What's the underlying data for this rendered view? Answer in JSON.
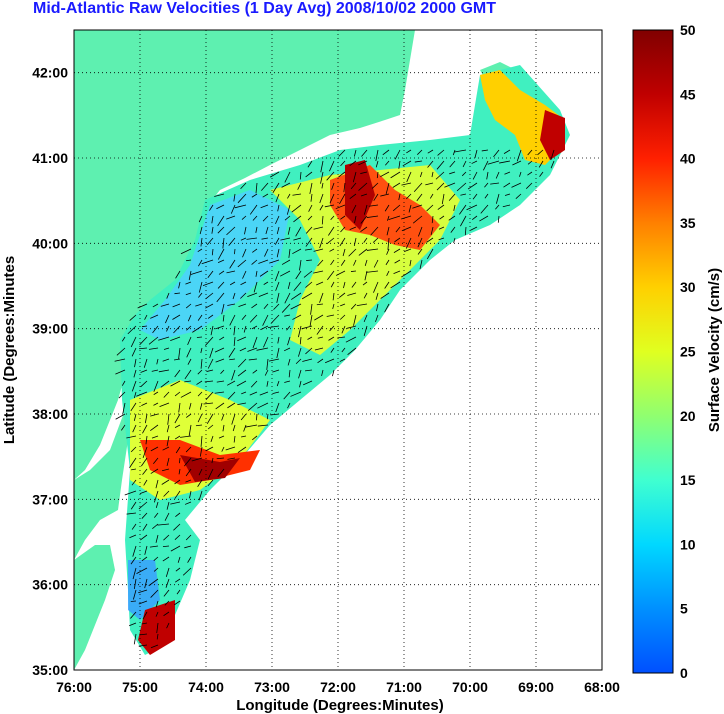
{
  "title": "Mid-Atlantic Raw Velocities (1 Day Avg) 2008/10/02 2000 GMT",
  "map": {
    "xlabel": "Longitude (Degrees:Minutes)",
    "ylabel": "Latitude (Degrees:Minutes",
    "x_ticks": [
      "76:00",
      "75:00",
      "74:00",
      "73:00",
      "72:00",
      "71:00",
      "70:00",
      "69:00",
      "68:00"
    ],
    "y_ticks": [
      "42:00",
      "41:00",
      "40:00",
      "39:00",
      "38:00",
      "37:00",
      "36:00",
      "35:00"
    ],
    "x_range": [
      -76,
      -68
    ],
    "y_range": [
      35,
      42.5
    ],
    "land_color": "#5ef0b0",
    "grid": "dotted"
  },
  "colorbar": {
    "label": "Surface Velocity (cm/s)",
    "ticks": [
      "50",
      "45",
      "40",
      "35",
      "30",
      "25",
      "20",
      "15",
      "10",
      "5",
      "0"
    ],
    "range": [
      0,
      50
    ],
    "colors": [
      "#0040ff",
      "#00a0ff",
      "#00ffff",
      "#60ffb0",
      "#b0ff50",
      "#ffff00",
      "#ffb000",
      "#ff5000",
      "#e00000",
      "#800000"
    ]
  }
}
